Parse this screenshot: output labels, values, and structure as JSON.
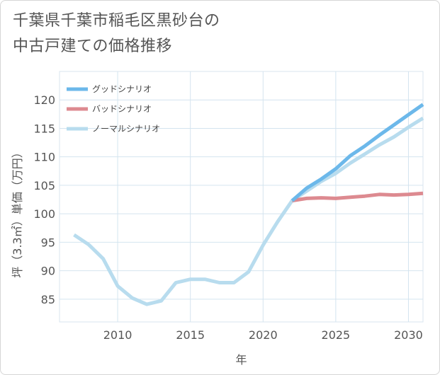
{
  "title": "千葉県千葉市稲毛区黒砂台の\n中古戸建ての価格推移",
  "chart_data": {
    "type": "line",
    "xlabel": "年",
    "ylabel": "坪（3.3㎡）単価（万円）",
    "xlim": [
      2006,
      2031
    ],
    "ylim": [
      81,
      125
    ],
    "xticks": [
      2010,
      2015,
      2020,
      2025,
      2030
    ],
    "yticks": [
      85,
      90,
      95,
      100,
      105,
      110,
      115,
      120
    ],
    "grid": true,
    "legend_position": "top-left",
    "series": [
      {
        "name": "グッドシナリオ",
        "color": "#6cb8ea",
        "x": [
          2022,
          2023,
          2024,
          2025,
          2026,
          2027,
          2028,
          2029,
          2030,
          2031
        ],
        "values": [
          102.3,
          104.5,
          106.1,
          107.9,
          110.2,
          111.9,
          113.8,
          115.6,
          117.4,
          119.2
        ]
      },
      {
        "name": "バッドシナリオ",
        "color": "#dd8a90",
        "x": [
          2022,
          2023,
          2024,
          2025,
          2026,
          2027,
          2028,
          2029,
          2030,
          2031
        ],
        "values": [
          102.3,
          102.7,
          102.8,
          102.7,
          102.9,
          103.1,
          103.4,
          103.3,
          103.4,
          103.6
        ]
      },
      {
        "name": "ノーマルシナリオ",
        "color": "#b8dcee",
        "x": [
          2007,
          2008,
          2009,
          2010,
          2011,
          2012,
          2013,
          2014,
          2015,
          2016,
          2017,
          2018,
          2019,
          2020,
          2021,
          2022,
          2023,
          2024,
          2025,
          2026,
          2027,
          2028,
          2029,
          2030,
          2031
        ],
        "values": [
          96.3,
          94.6,
          92.1,
          87.3,
          85.2,
          84.1,
          84.7,
          87.9,
          88.5,
          88.5,
          87.9,
          87.9,
          89.8,
          94.5,
          98.6,
          102.3,
          104.0,
          105.7,
          107.1,
          108.9,
          110.5,
          112.1,
          113.5,
          115.2,
          116.8
        ]
      }
    ]
  }
}
